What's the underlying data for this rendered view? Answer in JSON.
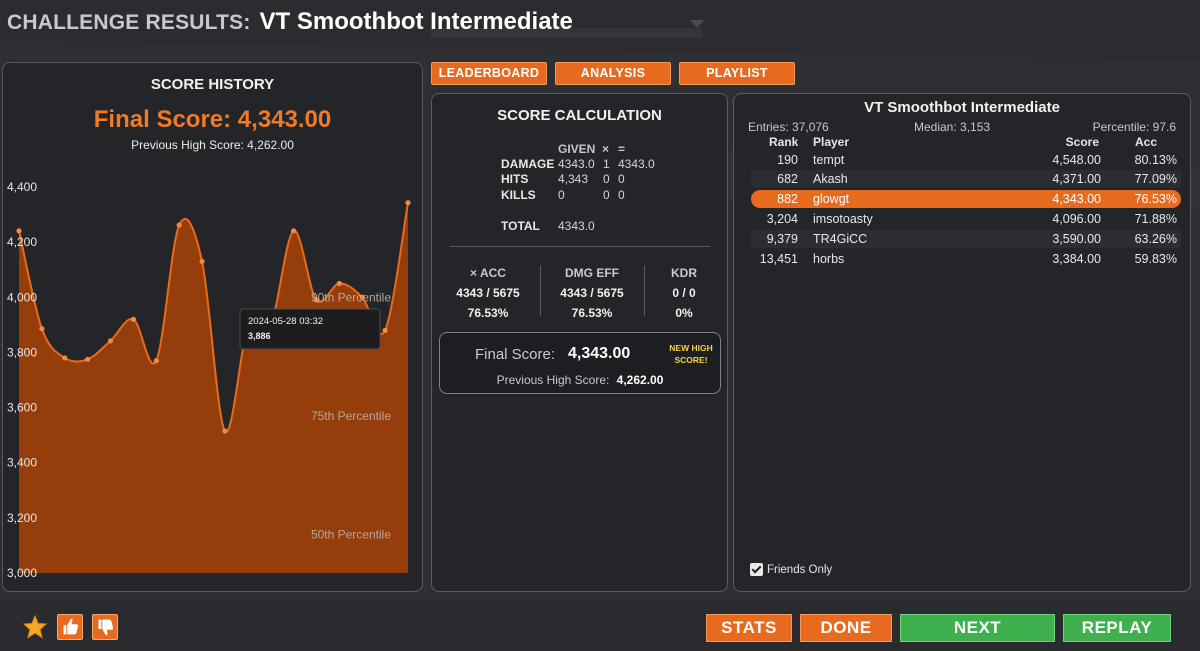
{
  "header": {
    "prefix": "CHALLENGE RESULTS:",
    "title": "VT Smoothbot Intermediate"
  },
  "tabs": [
    "LEADERBOARD",
    "ANALYSIS",
    "PLAYLIST"
  ],
  "score_history": {
    "title": "SCORE HISTORY",
    "final_score": "Final Score: 4,343.00",
    "previous_high": "Previous High Score: 4,262.00",
    "tooltip": {
      "date": "2024-05-28 03:32",
      "value": "3,886"
    },
    "percentile_labels": [
      "90th Percentile",
      "75th Percentile",
      "50th Percentile"
    ]
  },
  "chart_data": {
    "type": "area",
    "y_ticks": [
      "4,400",
      "4,200",
      "4,000",
      "3,800",
      "3,600",
      "3,400",
      "3,200",
      "3,000"
    ],
    "ylim": [
      3000,
      4400
    ],
    "values": [
      4241,
      3886,
      3780,
      3775,
      3842,
      3920,
      3770,
      4262,
      4130,
      3515,
      3886,
      3900,
      4241,
      3990,
      4050,
      4000,
      3880,
      4343
    ],
    "percentiles": [
      {
        "label": "90th Percentile",
        "value": 4000
      },
      {
        "label": "75th Percentile",
        "value": 3570
      },
      {
        "label": "50th Percentile",
        "value": 3140
      }
    ],
    "color": "#e86a1e",
    "grid": false
  },
  "score_calc": {
    "title": "SCORE CALCULATION",
    "columns": [
      "GIVEN",
      "×",
      "="
    ],
    "rows": [
      {
        "label": "DAMAGE",
        "given": "4343.0",
        "mult": "1",
        "result": "4343.0"
      },
      {
        "label": "HITS",
        "given": "4,343",
        "mult": "0",
        "result": "0"
      },
      {
        "label": "KILLS",
        "given": "0",
        "mult": "0",
        "result": "0"
      }
    ],
    "total_label": "TOTAL",
    "total_value": "4343.0",
    "stats": [
      {
        "label": "× ACC",
        "ratio": "4343 / 5675",
        "pct": "76.53%"
      },
      {
        "label": "DMG EFF",
        "ratio": "4343 / 5675",
        "pct": "76.53%"
      },
      {
        "label": "KDR",
        "ratio": "0 / 0",
        "pct": "0%"
      }
    ],
    "final_label": "Final Score:",
    "final_value": "4,343.00",
    "new_high_line1": "NEW HIGH",
    "new_high_line2": "SCORE!",
    "prev_label": "Previous High Score:",
    "prev_value": "4,262.00"
  },
  "leaderboard": {
    "title": "VT Smoothbot Intermediate",
    "entries": "Entries: 37,076",
    "median": "Median: 3,153",
    "percentile": "Percentile: 97.6",
    "columns": {
      "rank": "Rank",
      "player": "Player",
      "score": "Score",
      "acc": "Acc"
    },
    "rows": [
      {
        "rank": "190",
        "player": "tempt",
        "score": "4,548.00",
        "acc": "80.13%"
      },
      {
        "rank": "682",
        "player": "Akash",
        "score": "4,371.00",
        "acc": "77.09%"
      },
      {
        "rank": "882",
        "player": "glowgt",
        "score": "4,343.00",
        "acc": "76.53%",
        "highlight": true
      },
      {
        "rank": "3,204",
        "player": "imsotoasty",
        "score": "4,096.00",
        "acc": "71.88%"
      },
      {
        "rank": "9,379",
        "player": "TR4GiCC",
        "score": "3,590.00",
        "acc": "63.26%"
      },
      {
        "rank": "13,451",
        "player": "horbs",
        "score": "3,384.00",
        "acc": "59.83%"
      }
    ],
    "friends_only": "Friends Only"
  },
  "buttons": {
    "stats": "STATS",
    "done": "DONE",
    "next": "NEXT",
    "replay": "REPLAY"
  },
  "colors": {
    "accent": "#e86a1e",
    "green": "#3fb04e",
    "gold": "#f4d24a"
  }
}
